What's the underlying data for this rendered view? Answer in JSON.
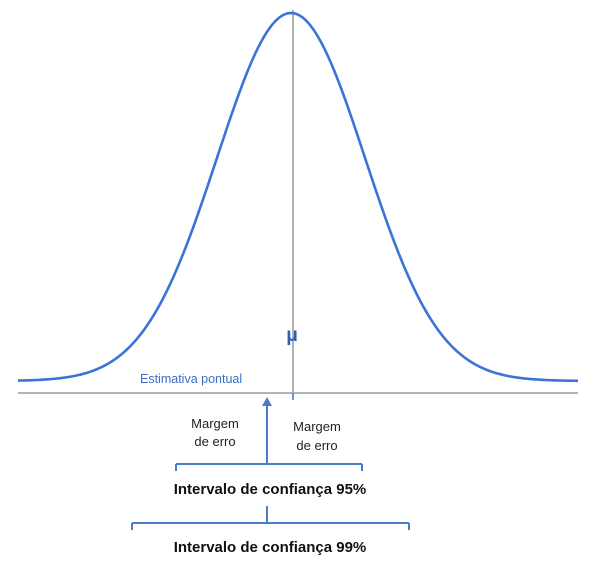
{
  "diagram": {
    "mu_symbol": "μ",
    "point_estimate_label": "Estimativa pontual",
    "margin_left": {
      "line1": "Margem",
      "line2": "de erro"
    },
    "margin_right": {
      "line1": "Margem",
      "line2": "de erro"
    },
    "ci95_label": "Intervalo de confiança 95%",
    "ci99_label": "Intervalo de confiança 99%"
  },
  "colors": {
    "curve": "#3b73d6",
    "axis": "#b3b3b3",
    "bracket": "#4a7cc9",
    "mu": "#2f5fb3",
    "point_label": "#3a6fc4"
  }
}
